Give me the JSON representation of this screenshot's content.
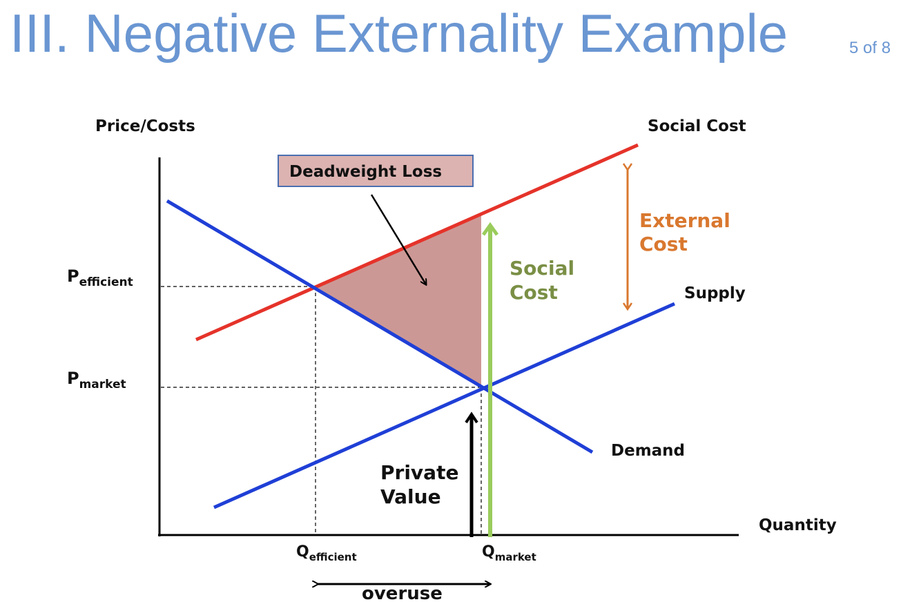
{
  "title": "III. Negative Externality Example",
  "slide_number": "5 of 8",
  "axes": {
    "y_label": "Price/Costs",
    "x_label": "Quantity"
  },
  "price_labels": {
    "efficient": {
      "main": "P",
      "sub": "efficient"
    },
    "market": {
      "main": "P",
      "sub": "market"
    }
  },
  "quantity_labels": {
    "efficient": {
      "main": "Q",
      "sub": "efficient"
    },
    "market": {
      "main": "Q",
      "sub": "market"
    }
  },
  "curves": {
    "social_cost": "Social Cost",
    "supply": "Supply",
    "demand": "Demand"
  },
  "annotations": {
    "deadweight_loss": "Deadweight Loss",
    "external_cost_line1": "External",
    "external_cost_line2": "Cost",
    "social_cost_line1": "Social",
    "social_cost_line2": "Cost",
    "private_value_line1": "Private",
    "private_value_line2": "Value",
    "overuse": "overuse"
  },
  "colors": {
    "title": "#6a96d2",
    "social_cost_curve": "#e5332a",
    "supply_demand": "#1f3fd6",
    "deadweight_fill": "#cc9895",
    "external_cost": "#d9782f",
    "social_cost_arrow": "#9acc5c",
    "social_cost_text": "#7a8f45"
  }
}
